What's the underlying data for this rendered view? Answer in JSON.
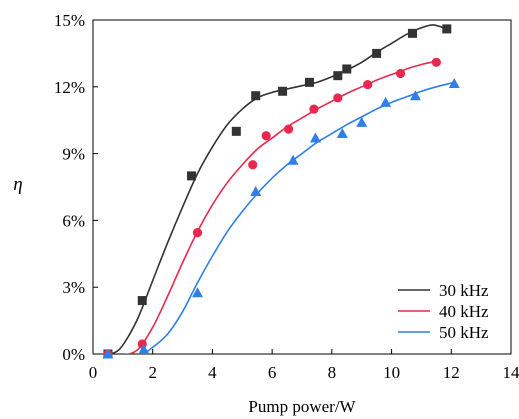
{
  "chart_data": {
    "type": "scatter",
    "title": "",
    "xlabel": "Pump power/W",
    "ylabel": "η",
    "xlim": [
      0,
      14
    ],
    "ylim": [
      0,
      15
    ],
    "x_ticks": [
      0,
      2,
      4,
      6,
      8,
      10,
      12,
      14
    ],
    "y_ticks": [
      0,
      3,
      6,
      9,
      12,
      15
    ],
    "x_tick_labels": [
      "0",
      "2",
      "4",
      "6",
      "8",
      "10",
      "12",
      "14"
    ],
    "y_tick_labels": [
      "0%",
      "3%",
      "6%",
      "9%",
      "12%",
      "15%"
    ],
    "grid": false,
    "legend_position": "bottom-right",
    "series": [
      {
        "name": "30 kHz",
        "color": "#333333",
        "marker": "square",
        "points": [
          [
            0.5,
            0.0
          ],
          [
            1.65,
            2.4
          ],
          [
            3.3,
            8.0
          ],
          [
            4.8,
            10.0
          ],
          [
            5.45,
            11.6
          ],
          [
            6.35,
            11.8
          ],
          [
            7.25,
            12.2
          ],
          [
            8.2,
            12.5
          ],
          [
            8.5,
            12.8
          ],
          [
            9.5,
            13.5
          ],
          [
            10.7,
            14.4
          ],
          [
            11.85,
            14.6
          ]
        ],
        "curve": [
          [
            0.4,
            0.0
          ],
          [
            0.7,
            0.05
          ],
          [
            1.0,
            0.4
          ],
          [
            1.5,
            1.6
          ],
          [
            2.0,
            3.3
          ],
          [
            2.5,
            5.0
          ],
          [
            3.0,
            6.6
          ],
          [
            3.5,
            8.1
          ],
          [
            4.0,
            9.3
          ],
          [
            4.5,
            10.3
          ],
          [
            5.0,
            11.0
          ],
          [
            5.5,
            11.5
          ],
          [
            6.0,
            11.75
          ],
          [
            6.5,
            11.9
          ],
          [
            7.0,
            12.05
          ],
          [
            7.5,
            12.2
          ],
          [
            8.0,
            12.45
          ],
          [
            8.5,
            12.75
          ],
          [
            9.0,
            13.1
          ],
          [
            9.5,
            13.55
          ],
          [
            10.0,
            13.95
          ],
          [
            10.5,
            14.35
          ],
          [
            11.0,
            14.65
          ],
          [
            11.4,
            14.78
          ],
          [
            11.85,
            14.6
          ]
        ]
      },
      {
        "name": "40 kHz",
        "color": "#e8294f",
        "marker": "circle",
        "points": [
          [
            0.5,
            0.0
          ],
          [
            1.65,
            0.45
          ],
          [
            3.5,
            5.45
          ],
          [
            5.35,
            8.5
          ],
          [
            5.8,
            9.8
          ],
          [
            6.55,
            10.1
          ],
          [
            7.4,
            11.0
          ],
          [
            8.2,
            11.5
          ],
          [
            9.2,
            12.1
          ],
          [
            10.3,
            12.6
          ],
          [
            11.5,
            13.1
          ]
        ],
        "curve": [
          [
            0.4,
            0.0
          ],
          [
            0.7,
            -0.05
          ],
          [
            1.0,
            -0.05
          ],
          [
            1.5,
            0.2
          ],
          [
            2.0,
            1.2
          ],
          [
            2.5,
            2.6
          ],
          [
            3.0,
            4.1
          ],
          [
            3.5,
            5.5
          ],
          [
            4.0,
            6.7
          ],
          [
            4.5,
            7.7
          ],
          [
            5.0,
            8.5
          ],
          [
            5.5,
            9.2
          ],
          [
            6.0,
            9.7
          ],
          [
            6.5,
            10.2
          ],
          [
            7.0,
            10.6
          ],
          [
            7.5,
            11.0
          ],
          [
            8.0,
            11.35
          ],
          [
            8.5,
            11.7
          ],
          [
            9.0,
            12.0
          ],
          [
            9.5,
            12.3
          ],
          [
            10.0,
            12.55
          ],
          [
            10.5,
            12.8
          ],
          [
            11.0,
            13.0
          ],
          [
            11.5,
            13.15
          ]
        ]
      },
      {
        "name": "50 kHz",
        "color": "#2f7fe6",
        "marker": "triangle",
        "points": [
          [
            0.5,
            0.0
          ],
          [
            1.7,
            0.2
          ],
          [
            3.5,
            2.75
          ],
          [
            5.45,
            7.3
          ],
          [
            6.7,
            8.7
          ],
          [
            7.45,
            9.7
          ],
          [
            8.35,
            9.9
          ],
          [
            9.0,
            10.4
          ],
          [
            9.8,
            11.3
          ],
          [
            10.8,
            11.6
          ],
          [
            12.1,
            12.15
          ]
        ],
        "curve": [
          [
            0.4,
            0.0
          ],
          [
            0.7,
            -0.25
          ],
          [
            1.0,
            -0.35
          ],
          [
            1.5,
            -0.15
          ],
          [
            2.0,
            0.3
          ],
          [
            2.5,
            0.9
          ],
          [
            3.0,
            1.9
          ],
          [
            3.5,
            3.2
          ],
          [
            4.0,
            4.4
          ],
          [
            4.5,
            5.5
          ],
          [
            5.0,
            6.4
          ],
          [
            5.5,
            7.2
          ],
          [
            6.0,
            7.9
          ],
          [
            6.5,
            8.5
          ],
          [
            7.0,
            9.0
          ],
          [
            7.5,
            9.5
          ],
          [
            8.0,
            9.9
          ],
          [
            8.5,
            10.3
          ],
          [
            9.0,
            10.65
          ],
          [
            9.5,
            11.0
          ],
          [
            10.0,
            11.3
          ],
          [
            10.5,
            11.55
          ],
          [
            11.0,
            11.8
          ],
          [
            11.5,
            12.0
          ],
          [
            12.1,
            12.2
          ]
        ]
      }
    ]
  }
}
